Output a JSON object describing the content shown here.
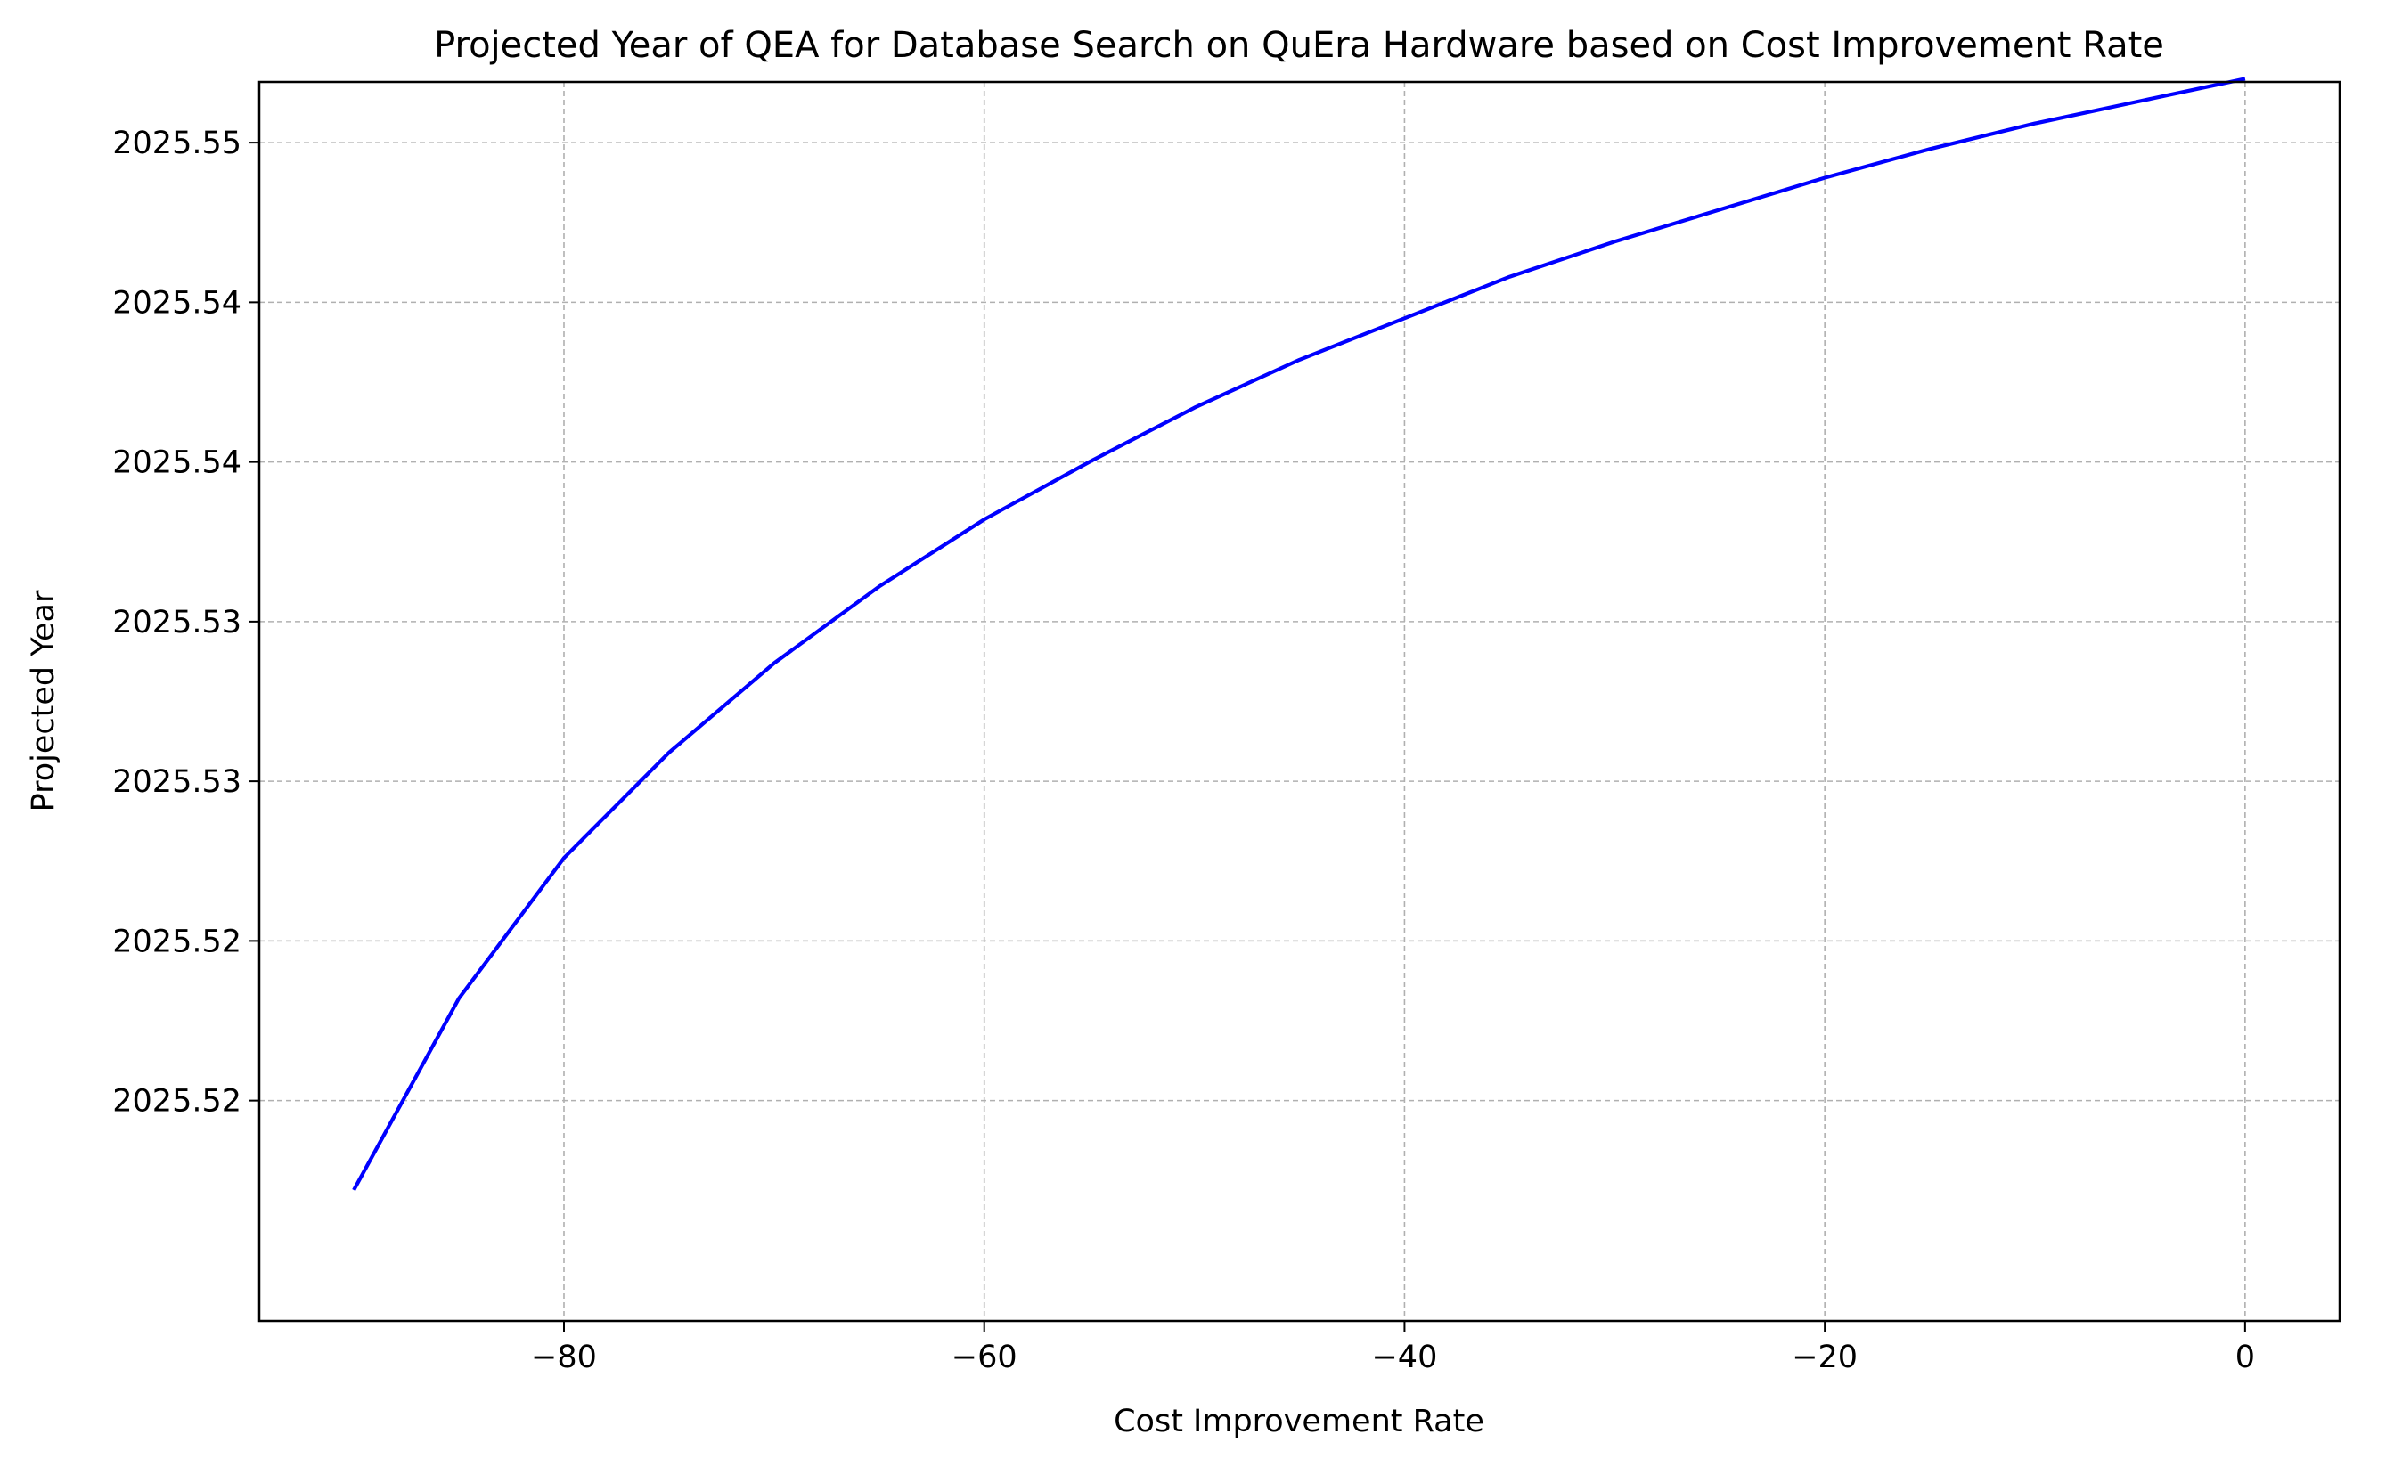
{
  "chart_data": {
    "type": "line",
    "title": "Projected Year of QEA for Database Search on QuEra Hardware based on Cost Improvement Rate",
    "xlabel": "Cost Improvement Rate",
    "ylabel": "Projected Year",
    "xlim": [
      -94.5,
      4.5
    ],
    "ylim": [
      2025.5106,
      2025.5494
    ],
    "grid": true,
    "line_color": "#0000ff",
    "xticks": [
      {
        "value": -80,
        "label": "−80"
      },
      {
        "value": -60,
        "label": "−60"
      },
      {
        "value": -40,
        "label": "−40"
      },
      {
        "value": -20,
        "label": "−20"
      },
      {
        "value": 0,
        "label": "0"
      }
    ],
    "yticks": [
      {
        "value": 2025.5475,
        "label": "2025.55"
      },
      {
        "value": 2025.5425,
        "label": "2025.54"
      },
      {
        "value": 2025.5375,
        "label": "2025.54"
      },
      {
        "value": 2025.5325,
        "label": "2025.53"
      },
      {
        "value": 2025.5275,
        "label": "2025.53"
      },
      {
        "value": 2025.5225,
        "label": "2025.52"
      },
      {
        "value": 2025.5175,
        "label": "2025.52"
      }
    ],
    "series": [
      {
        "x": [
          -90,
          -85,
          -80,
          -75,
          -70,
          -65,
          -60,
          -55,
          -50,
          -45,
          -40,
          -35,
          -30,
          -25,
          -20,
          -15,
          -10,
          -5,
          0
        ],
        "y": [
          2025.5147,
          2025.5207,
          2025.5251,
          2025.5284,
          2025.5312,
          2025.5336,
          2025.5357,
          2025.5375,
          2025.5392,
          2025.5407,
          2025.542,
          2025.5433,
          2025.5444,
          2025.5454,
          2025.5464,
          2025.5473,
          2025.5481,
          2025.5488,
          2025.5495
        ]
      }
    ]
  }
}
